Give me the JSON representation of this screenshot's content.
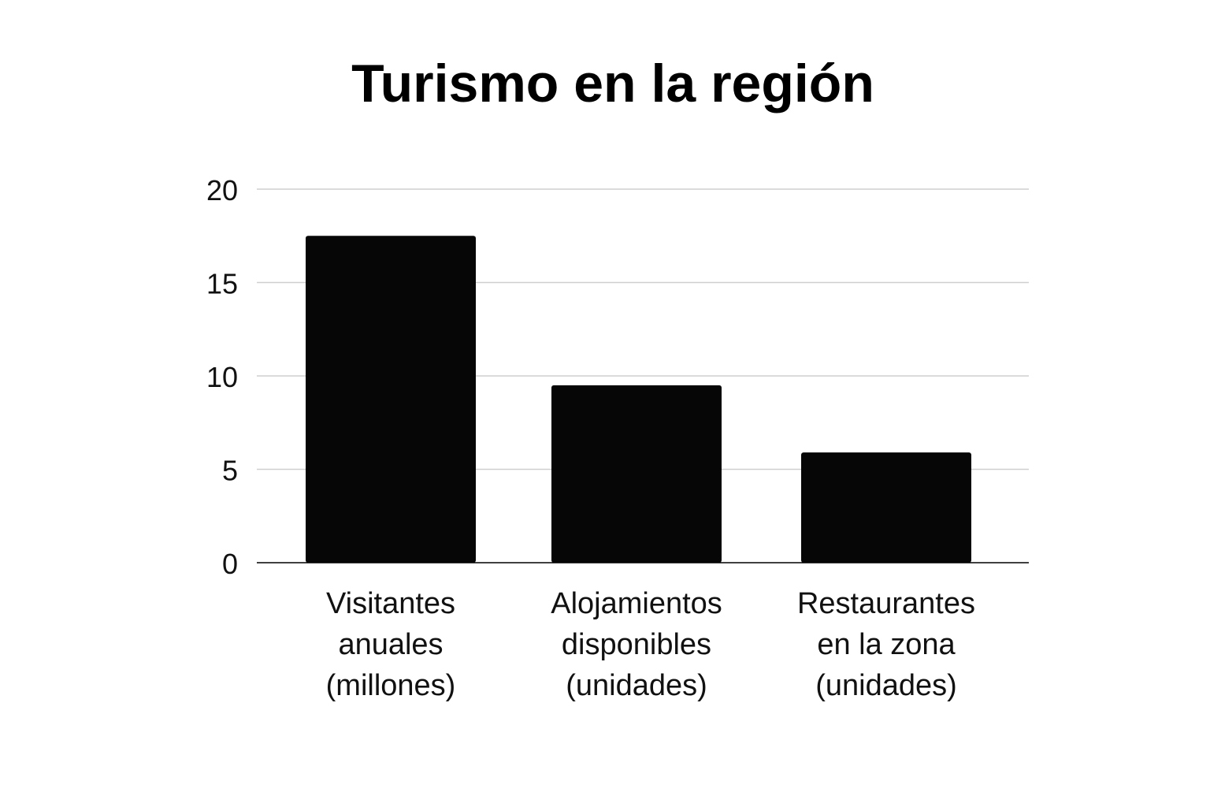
{
  "chart_data": {
    "type": "bar",
    "title": "Turismo en la región",
    "xlabel": "",
    "ylabel": "",
    "categories": [
      [
        "Visitantes",
        "anuales",
        "(millones)"
      ],
      [
        "Alojamientos",
        "disponibles",
        "(unidades)"
      ],
      [
        "Restaurantes",
        "en la zona",
        "(unidades)"
      ]
    ],
    "values": [
      17.5,
      9.5,
      5.9
    ],
    "ylim": [
      0,
      20
    ],
    "yticks": [
      0,
      5,
      10,
      15,
      20
    ],
    "grid": true,
    "legend": "none",
    "colors": {
      "bar": "#060606",
      "grid": "#cfcfcf",
      "axis": "#000000"
    }
  }
}
